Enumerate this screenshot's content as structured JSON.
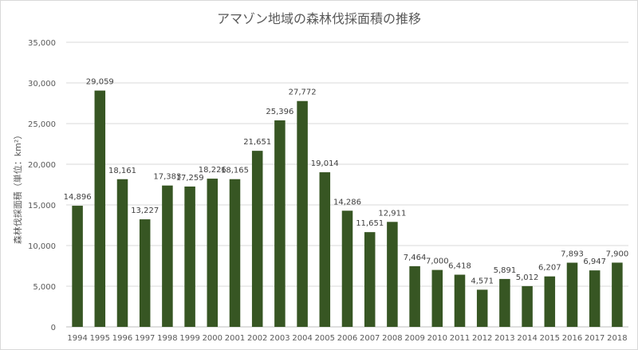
{
  "chart_data": {
    "type": "bar",
    "title": "アマゾン地域の森林伐採面積の推移",
    "xlabel": "",
    "ylabel": "森林伐採面積（単位：km²）",
    "ylim": [
      0,
      35000
    ],
    "yticks": [
      0,
      5000,
      10000,
      15000,
      20000,
      25000,
      30000,
      35000
    ],
    "ytick_labels": [
      "0",
      "5,000",
      "10,000",
      "15,000",
      "20,000",
      "25,000",
      "30,000",
      "35,000"
    ],
    "grid": true,
    "legend": "none",
    "bar_color": "#375623",
    "categories": [
      "1994",
      "1995",
      "1996",
      "1997",
      "1998",
      "1999",
      "2000",
      "2001",
      "2002",
      "2003",
      "2004",
      "2005",
      "2006",
      "2007",
      "2008",
      "2009",
      "2010",
      "2011",
      "2012",
      "2013",
      "2014",
      "2015",
      "2016",
      "2017",
      "2018"
    ],
    "values": [
      14896,
      29059,
      18161,
      13227,
      17383,
      17259,
      18226,
      18165,
      21651,
      25396,
      27772,
      19014,
      14286,
      11651,
      12911,
      7464,
      7000,
      6418,
      4571,
      5891,
      5012,
      6207,
      7893,
      6947,
      7900
    ],
    "data_labels": [
      "14,896",
      "29,059",
      "18,161",
      "13,227",
      "17,383",
      "17,259",
      "18,226",
      "18,165",
      "21,651",
      "25,396",
      "27,772",
      "19,014",
      "14,286",
      "11,651",
      "12,911",
      "7,464",
      "7,000",
      "6,418",
      "4,571",
      "5,891",
      "5,012",
      "6,207",
      "7,893",
      "6,947",
      "7,900"
    ]
  }
}
